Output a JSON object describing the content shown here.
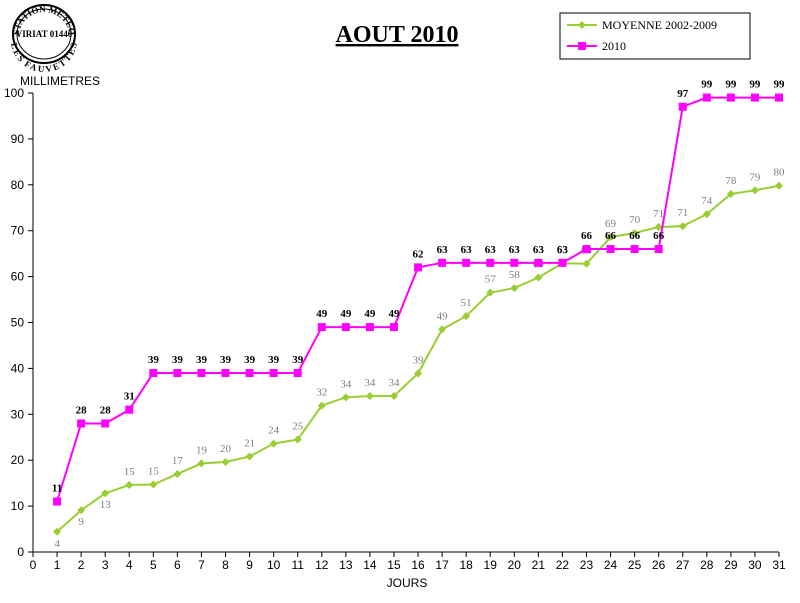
{
  "logo": {
    "top_text": "STATION METEO",
    "middle_text": "VIRIAT 01440",
    "bottom_text": "LES FAUVETTES"
  },
  "chart_data": {
    "type": "line",
    "title": "AOUT 2010",
    "xlabel": "JOURS",
    "ylabel": "MILLIMETRES",
    "xlim": [
      0,
      31
    ],
    "ylim": [
      0,
      100
    ],
    "yticks": [
      0,
      10,
      20,
      30,
      40,
      50,
      60,
      70,
      80,
      90,
      100
    ],
    "grid": false,
    "legend_position": "top-right",
    "x": [
      1,
      2,
      3,
      4,
      5,
      6,
      7,
      8,
      9,
      10,
      11,
      12,
      13,
      14,
      15,
      16,
      17,
      18,
      19,
      20,
      21,
      22,
      23,
      24,
      25,
      26,
      27,
      28,
      29,
      30,
      31
    ],
    "series": [
      {
        "name": "MOYENNE 2002-2009",
        "color": "#9acd32",
        "label_color": "#7f7f7f",
        "marker": "diamond",
        "values": [
          4.4,
          9.1,
          12.8,
          14.6,
          14.7,
          17.0,
          19.3,
          19.6,
          20.8,
          23.6,
          24.5,
          31.9,
          33.7,
          34.0,
          34.0,
          38.9,
          48.5,
          51.4,
          56.5,
          57.5,
          59.8,
          62.9,
          62.8,
          68.6,
          69.5,
          70.8,
          71.0,
          73.6,
          78.0,
          78.8,
          79.8
        ],
        "labels": [
          "4",
          "9",
          "13",
          "15",
          "15",
          "17",
          "19",
          "20",
          "21",
          "24",
          "25",
          "32",
          "34",
          "34",
          "34",
          "39",
          "49",
          "51",
          "57",
          "58",
          "60",
          "63",
          "63",
          "69",
          "70",
          "71",
          "71",
          "74",
          "78",
          "79",
          "80"
        ]
      },
      {
        "name": "2010",
        "color": "#ff00ff",
        "label_color": "#000000",
        "marker": "square",
        "values": [
          11,
          28,
          28,
          31,
          39,
          39,
          39,
          39,
          39,
          39,
          39,
          49,
          49,
          49,
          49,
          62,
          63,
          63,
          63,
          63,
          63,
          63,
          66,
          66,
          66,
          66,
          97,
          99,
          99,
          99,
          99
        ],
        "labels": [
          "11",
          "28",
          "28",
          "31",
          "39",
          "39",
          "39",
          "39",
          "39",
          "39",
          "39",
          "49",
          "49",
          "49",
          "49",
          "62",
          "63",
          "63",
          "63",
          "63",
          "63",
          "63",
          "66",
          "66",
          "66",
          "66",
          "97",
          "99",
          "99",
          "99",
          "99"
        ]
      }
    ]
  }
}
